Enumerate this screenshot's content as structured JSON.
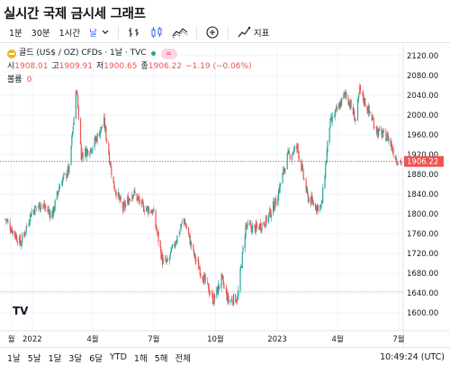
{
  "page": {
    "title": "실시간 국제 금시세 그래프"
  },
  "toolbar": {
    "intervals": [
      "1분",
      "30분",
      "1시간",
      "날"
    ],
    "active_interval": "날",
    "indicators_label": "지표",
    "icons": [
      "chevron-down-icon",
      "bar-style-icon",
      "candle-style-icon",
      "compare-icon",
      "add-circle-icon",
      "indicators-icon"
    ]
  },
  "legend": {
    "symbol": "골드 (US$ / OZ) CFDs · 1날 · TVC",
    "symbol_icon": "gold-coin-icon",
    "toggle_label": "=",
    "ohlc": [
      {
        "label": "시",
        "value": "1908.01"
      },
      {
        "label": "고",
        "value": "1909.91"
      },
      {
        "label": "저",
        "value": "1900.65"
      },
      {
        "label": "종",
        "value": "1906.22"
      }
    ],
    "change": "−1.19 (−0.06%)",
    "volume_label": "볼륨",
    "volume_value": "0"
  },
  "range_buttons": [
    "1날",
    "5날",
    "1달",
    "3달",
    "6달",
    "YTD",
    "1해",
    "5해",
    "전체"
  ],
  "clock": "10:49:24 (UTC)",
  "watermark": "TV",
  "colors": {
    "up": "#26a69a",
    "down": "#ef5350",
    "last_price": "#ef5350",
    "grid": "#f0f3fa",
    "dotted": "#ef5350"
  },
  "chart_data": {
    "type": "candlestick",
    "title": "골드 (US$ / OZ) CFDs · 1날 · TVC",
    "x_tick_labels": [
      "월",
      "2022",
      "4월",
      "7월",
      "10월",
      "2023",
      "4월",
      "7월"
    ],
    "x_tick_months": [
      "2021-12",
      "2022-01",
      "2022-04",
      "2022-07",
      "2022-10",
      "2023-01",
      "2023-04",
      "2023-07"
    ],
    "y_tick_labels": [
      "2120.00",
      "2080.00",
      "2040.00",
      "2000.00",
      "1960.00",
      "1920.00",
      "1880.00",
      "1840.00",
      "1800.00",
      "1760.00",
      "1720.00",
      "1680.00",
      "1640.00",
      "1600.00"
    ],
    "ylim": [
      1600,
      2130
    ],
    "last_price": 1906.22,
    "last_price_label": "1906.22",
    "support_line": 1643,
    "date_range": [
      "2021-11-22",
      "2023-07-05"
    ],
    "close_path": [
      [
        "2021-11-22",
        1790
      ],
      [
        "2021-12-01",
        1770
      ],
      [
        "2021-12-15",
        1740
      ],
      [
        "2021-12-31",
        1805
      ],
      [
        "2022-01-14",
        1820
      ],
      [
        "2022-01-31",
        1798
      ],
      [
        "2022-02-11",
        1860
      ],
      [
        "2022-02-25",
        1890
      ],
      [
        "2022-03-08",
        2055
      ],
      [
        "2022-03-15",
        1920
      ],
      [
        "2022-03-31",
        1935
      ],
      [
        "2022-04-18",
        1985
      ],
      [
        "2022-05-02",
        1860
      ],
      [
        "2022-05-16",
        1810
      ],
      [
        "2022-05-31",
        1845
      ],
      [
        "2022-06-14",
        1815
      ],
      [
        "2022-06-30",
        1805
      ],
      [
        "2022-07-14",
        1705
      ],
      [
        "2022-07-21",
        1700
      ],
      [
        "2022-08-15",
        1790
      ],
      [
        "2022-08-31",
        1712
      ],
      [
        "2022-09-15",
        1665
      ],
      [
        "2022-09-28",
        1625
      ],
      [
        "2022-10-10",
        1668
      ],
      [
        "2022-10-20",
        1625
      ],
      [
        "2022-11-03",
        1630
      ],
      [
        "2022-11-15",
        1775
      ],
      [
        "2022-11-30",
        1770
      ],
      [
        "2022-12-15",
        1785
      ],
      [
        "2022-12-30",
        1825
      ],
      [
        "2023-01-16",
        1915
      ],
      [
        "2023-01-31",
        1935
      ],
      [
        "2023-02-15",
        1835
      ],
      [
        "2023-02-28",
        1815
      ],
      [
        "2023-03-08",
        1815
      ],
      [
        "2023-03-20",
        1980
      ],
      [
        "2023-04-04",
        2020
      ],
      [
        "2023-04-13",
        2045
      ],
      [
        "2023-04-28",
        1990
      ],
      [
        "2023-05-04",
        2050
      ],
      [
        "2023-05-15",
        2015
      ],
      [
        "2023-05-31",
        1965
      ],
      [
        "2023-06-15",
        1955
      ],
      [
        "2023-06-28",
        1910
      ],
      [
        "2023-07-05",
        1906
      ]
    ]
  }
}
